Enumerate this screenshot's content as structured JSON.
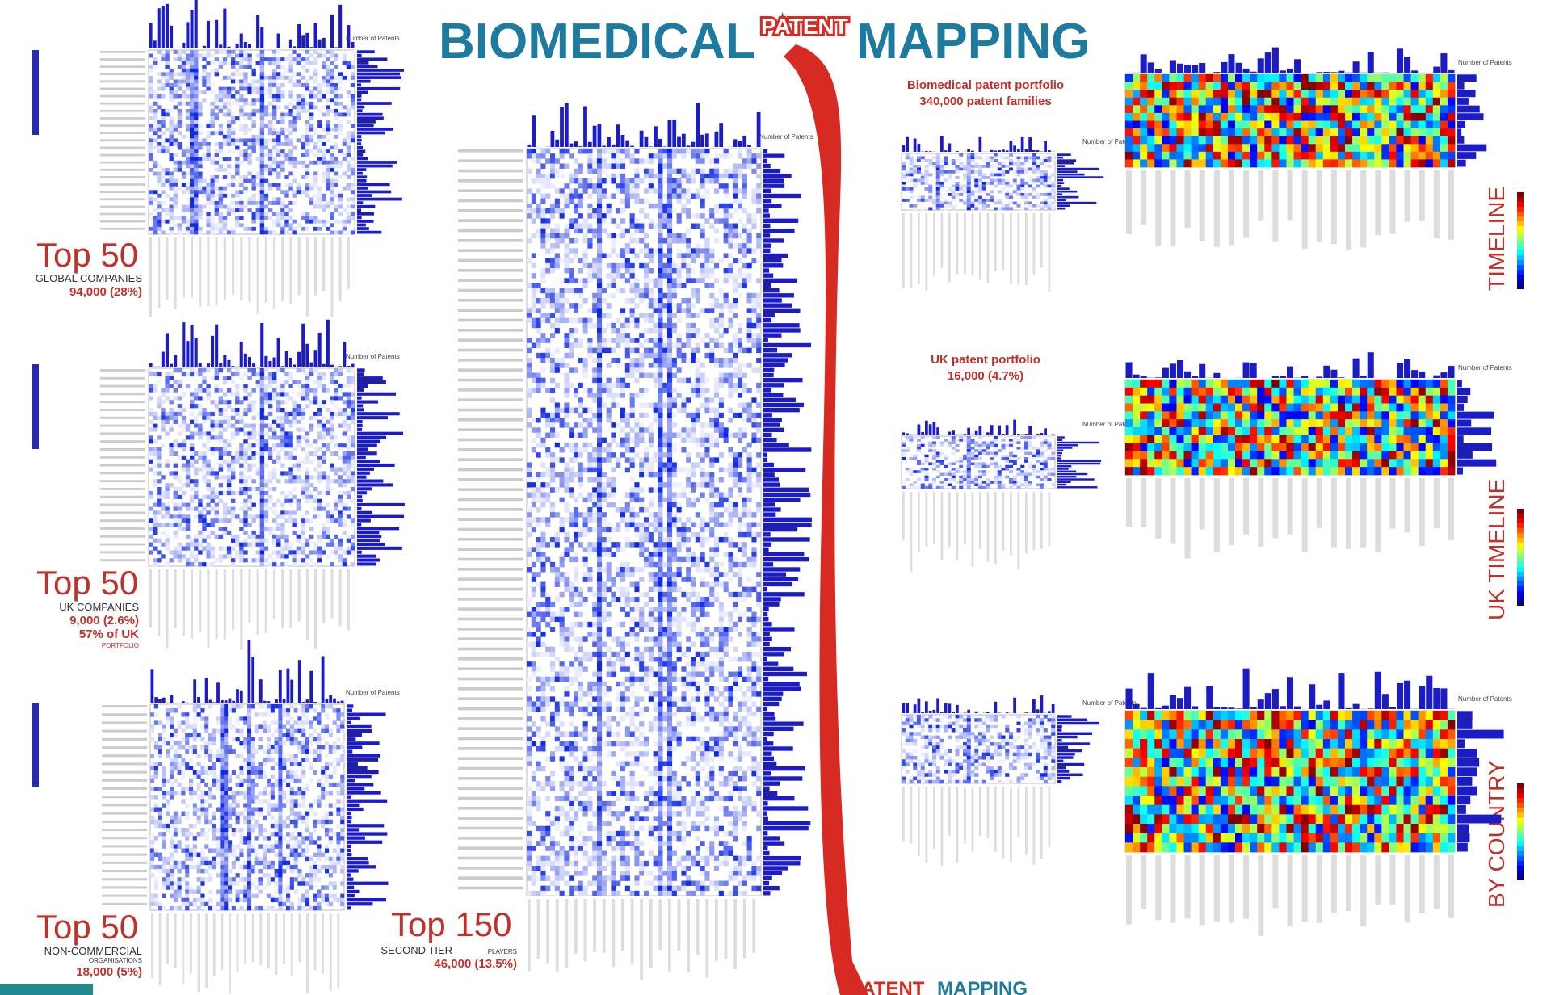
{
  "header": {
    "title_left": "BIOMEDICAL",
    "title_middle": "PATENT",
    "title_right": "MAPPING",
    "footer_left": "PATENT",
    "footer_right": "MAPPING"
  },
  "axis_label": "Number of Patents",
  "left_panels": [
    {
      "heading": "Top 50",
      "line1": "GLOBAL COMPANIES",
      "line2": "94,000 (28%)"
    },
    {
      "heading": "Top 50",
      "line1": "UK COMPANIES",
      "line2": "9,000 (2.6%)",
      "line3": "57% of UK",
      "line4": "PORTFOLIO"
    },
    {
      "heading": "Top 50",
      "line1": "NON-COMMERCIAL",
      "line1b": "ORGANISATIONS",
      "line2": "18,000 (5%)"
    }
  ],
  "center_panel": {
    "heading": "Top 150",
    "line1": "SECOND TIER",
    "line1b": "PLAYERS",
    "line2": "46,000 (13.5%)"
  },
  "portfolios": [
    {
      "title": "Biomedical patent portfolio",
      "subtitle": "340,000 patent families"
    },
    {
      "title": "UK patent portfolio",
      "subtitle": "16,000 (4.7%)"
    }
  ],
  "right_panels": [
    {
      "label": "TIMELINE"
    },
    {
      "label": "UK TIMELINE"
    },
    {
      "label": "BY COUNTRY"
    }
  ]
}
